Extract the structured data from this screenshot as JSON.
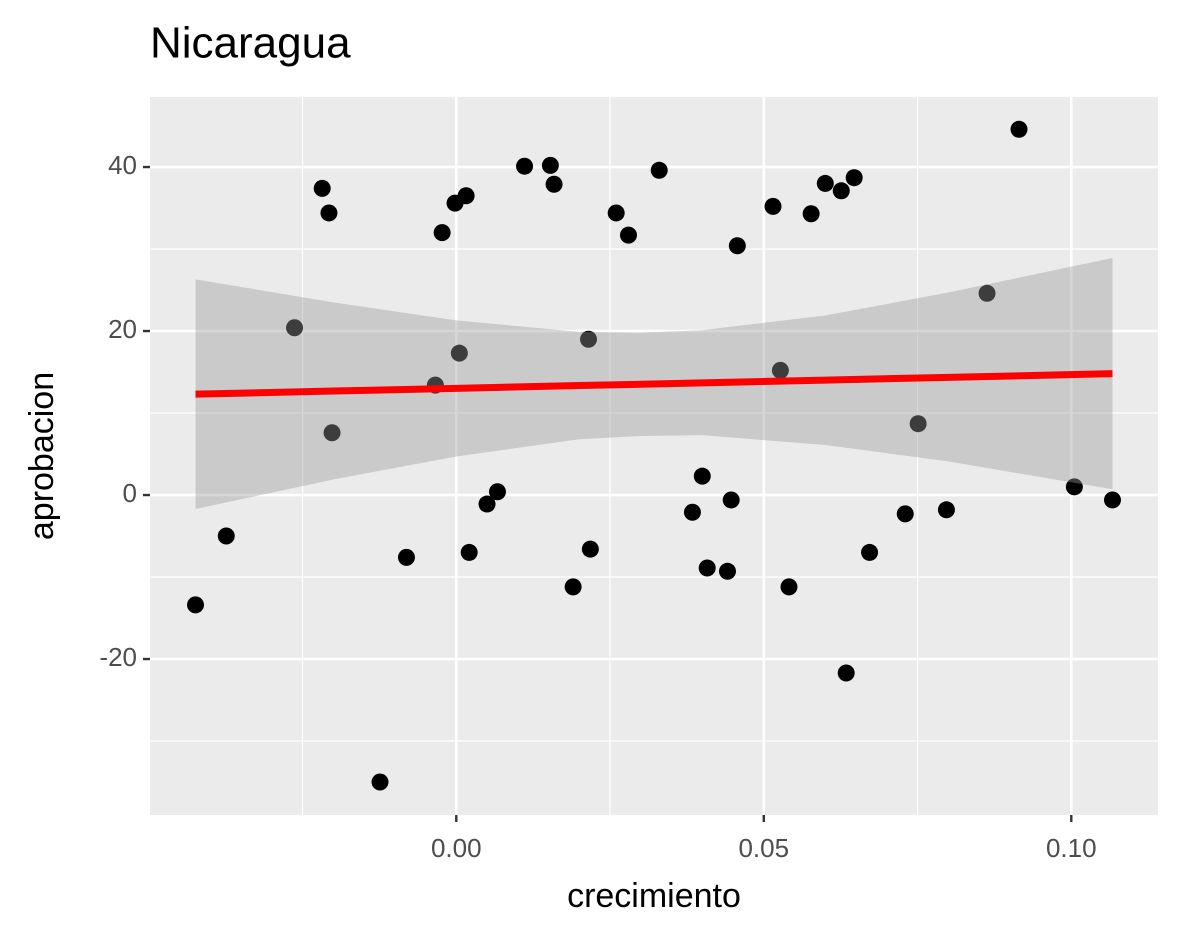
{
  "chart_data": {
    "type": "scatter",
    "title": "Nicaragua",
    "x_label": "crecimiento",
    "y_label": "aprobacion",
    "color": "#000000",
    "series": [
      {
        "x": [
          -0.0424,
          -0.0374,
          -0.0263,
          -0.0218,
          -0.0207,
          -0.0202,
          -0.0124,
          -0.0081,
          -0.0023,
          -0.0034,
          -0.0002,
          0.0016,
          0.0005,
          0.0021,
          0.005,
          0.0067,
          0.0111,
          0.0153,
          0.0159,
          0.019,
          0.0215,
          0.0218,
          0.026,
          0.028,
          0.033,
          0.0384,
          0.04,
          0.0408,
          0.0441,
          0.0447,
          0.0457,
          0.0515,
          0.0527,
          0.0541,
          0.0577,
          0.06,
          0.0626,
          0.0634,
          0.0647,
          0.0672,
          0.073,
          0.0751,
          0.0797,
          0.0863,
          0.0915,
          0.1005,
          0.1067
        ],
        "values": [
          -13.4,
          -5.0,
          20.4,
          37.4,
          34.4,
          7.6,
          -35.0,
          -7.6,
          32.0,
          13.4,
          35.6,
          36.5,
          17.3,
          -7.0,
          -1.1,
          0.4,
          40.1,
          40.2,
          37.9,
          -11.2,
          19.0,
          -6.6,
          34.4,
          31.7,
          39.6,
          -2.1,
          2.3,
          -8.9,
          -9.3,
          -0.6,
          30.4,
          35.2,
          15.2,
          -11.2,
          34.3,
          38.0,
          37.1,
          -21.7,
          38.7,
          -7.0,
          -2.3,
          8.7,
          -1.8,
          24.6,
          44.6,
          1.0,
          -0.6
        ]
      }
    ],
    "smooth": {
      "color": "#ff0000",
      "band_color": "#999999",
      "x": [
        -0.0424,
        -0.02,
        0,
        0.02,
        0.03,
        0.04,
        0.06,
        0.08,
        0.1067
      ],
      "y": [
        12.3,
        12.68,
        13.01,
        13.35,
        13.51,
        13.68,
        14.02,
        14.35,
        14.8
      ],
      "ymin": [
        -1.7,
        1.9,
        4.7,
        6.8,
        7.2,
        7.3,
        6.1,
        4.1,
        0.7
      ],
      "ymax": [
        26.3,
        23.5,
        21.3,
        19.9,
        19.8,
        20.1,
        21.9,
        24.7,
        28.9
      ]
    },
    "xlim": [
      -0.0498,
      0.1141
    ],
    "ylim": [
      -39.02,
      48.54
    ],
    "xticks": [
      {
        "value": 0,
        "label": "0.00"
      },
      {
        "value": 0.05,
        "label": "0.05"
      },
      {
        "value": 0.1,
        "label": "0.10"
      }
    ],
    "yticks": [
      -20,
      0,
      20,
      40
    ],
    "x_minor_grid": [
      -0.025,
      0.025,
      0.075
    ],
    "y_minor_grid": [
      -30,
      -10,
      10,
      30
    ],
    "grid": true
  }
}
